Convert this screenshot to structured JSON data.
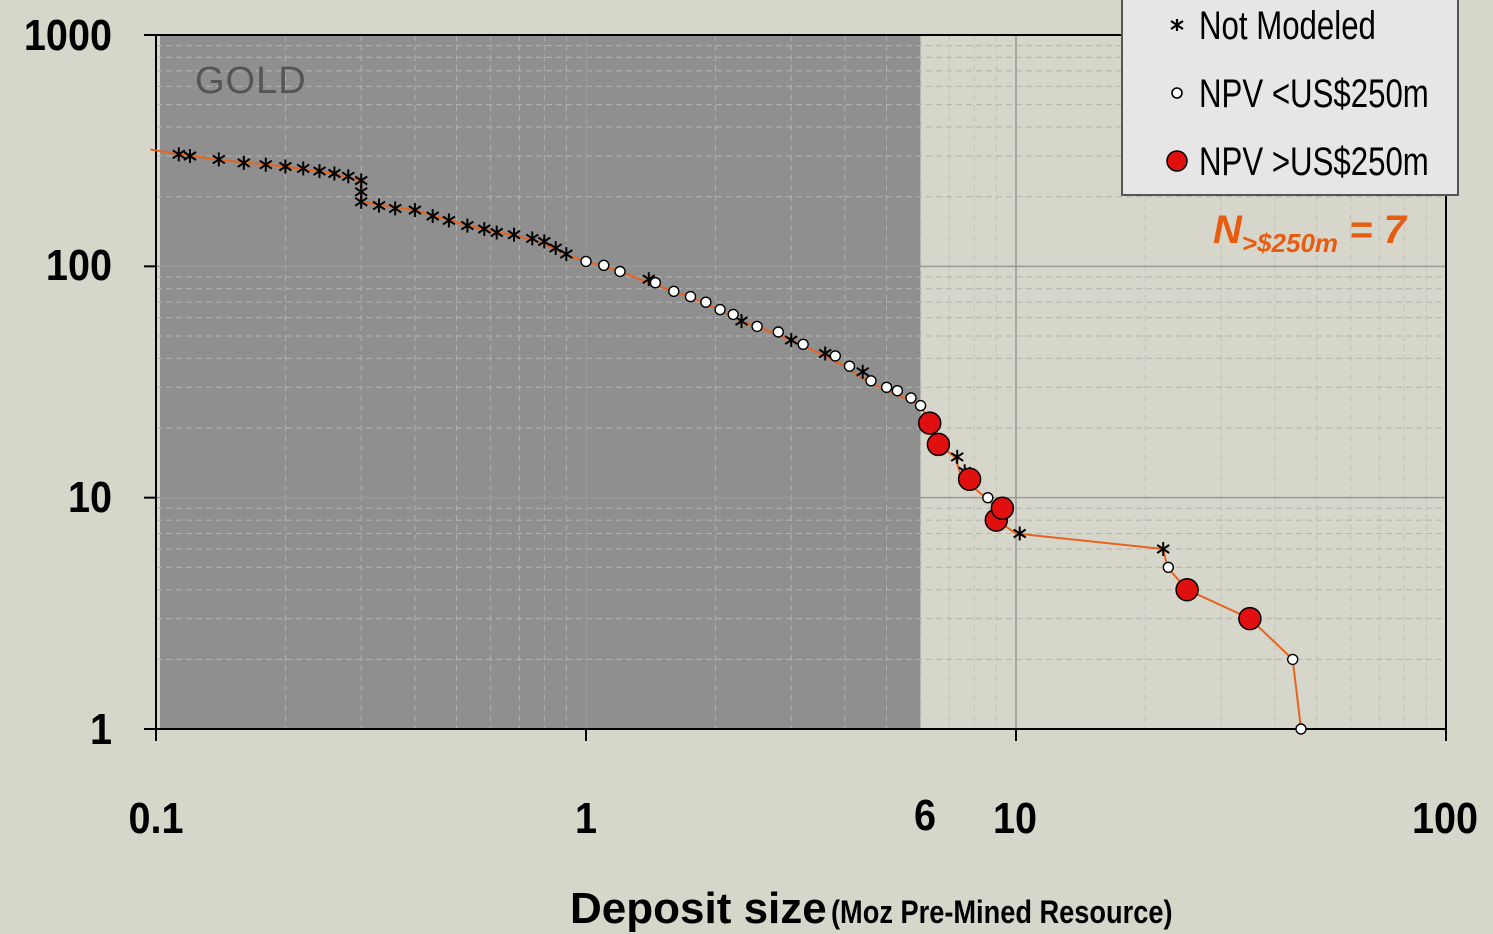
{
  "chart_data": {
    "type": "scatter",
    "xscale": "log",
    "yscale": "log",
    "xlim": [
      0.1,
      100
    ],
    "ylim": [
      1,
      1000
    ],
    "xlabel": "Deposit size",
    "xlabel_unit": "(Moz Pre-Mined Resource)",
    "ylabel": "",
    "grid": true,
    "x_ticks": [
      "0.1",
      "1",
      "6",
      "10",
      "100"
    ],
    "y_ticks": [
      "1000",
      "100",
      "10",
      "1"
    ],
    "region_label": "GOLD",
    "shaded_region": {
      "x_from": 0.1,
      "x_to": 6
    },
    "legend": {
      "position": "top-right",
      "entries": [
        "Not Modeled",
        "NPV <US$250m",
        "NPV >US$250m"
      ]
    },
    "annotation": {
      "main": "N",
      "sub": ">$250m",
      "tail": " = 7"
    },
    "curve": [
      [
        0.097,
        320
      ],
      [
        0.113,
        305
      ],
      [
        0.15,
        285
      ],
      [
        0.2,
        270
      ],
      [
        0.25,
        255
      ],
      [
        0.3,
        235
      ],
      [
        0.3,
        190
      ],
      [
        0.4,
        175
      ],
      [
        0.5,
        155
      ],
      [
        0.6,
        142
      ],
      [
        0.7,
        135
      ],
      [
        0.8,
        125
      ],
      [
        0.9,
        112
      ],
      [
        1.0,
        105
      ],
      [
        1.2,
        95
      ],
      [
        1.4,
        85
      ],
      [
        1.6,
        78
      ],
      [
        1.8,
        72
      ],
      [
        2.0,
        66
      ],
      [
        2.3,
        58
      ],
      [
        2.5,
        55
      ],
      [
        3.0,
        48
      ],
      [
        3.5,
        42
      ],
      [
        4.0,
        37
      ],
      [
        4.5,
        32
      ],
      [
        5.0,
        29
      ],
      [
        5.5,
        27
      ],
      [
        6.0,
        25
      ],
      [
        6.3,
        21
      ],
      [
        6.6,
        17
      ],
      [
        7.2,
        15
      ],
      [
        7.5,
        12
      ],
      [
        8.0,
        11
      ],
      [
        8.5,
        10
      ],
      [
        9.0,
        9
      ],
      [
        9.0,
        8
      ],
      [
        10.0,
        7
      ],
      [
        22.0,
        6
      ],
      [
        22.5,
        5
      ],
      [
        25.0,
        4
      ],
      [
        35.0,
        3
      ],
      [
        44.0,
        2
      ],
      [
        46.0,
        1
      ]
    ],
    "series": [
      {
        "name": "Not Modeled",
        "points": [
          [
            0.113,
            305
          ],
          [
            0.12,
            300
          ],
          [
            0.14,
            290
          ],
          [
            0.16,
            280
          ],
          [
            0.18,
            275
          ],
          [
            0.2,
            270
          ],
          [
            0.22,
            265
          ],
          [
            0.24,
            258
          ],
          [
            0.26,
            252
          ],
          [
            0.28,
            245
          ],
          [
            0.3,
            235
          ],
          [
            0.3,
            210
          ],
          [
            0.3,
            190
          ],
          [
            0.33,
            183
          ],
          [
            0.36,
            178
          ],
          [
            0.4,
            175
          ],
          [
            0.44,
            165
          ],
          [
            0.48,
            158
          ],
          [
            0.53,
            150
          ],
          [
            0.58,
            145
          ],
          [
            0.62,
            140
          ],
          [
            0.68,
            137
          ],
          [
            0.75,
            132
          ],
          [
            0.8,
            128
          ],
          [
            0.85,
            120
          ],
          [
            0.9,
            113
          ],
          [
            1.4,
            88
          ],
          [
            2.3,
            58
          ],
          [
            3.0,
            48
          ],
          [
            3.6,
            42
          ],
          [
            4.4,
            35
          ],
          [
            7.3,
            15
          ],
          [
            7.6,
            13
          ],
          [
            10.2,
            7
          ],
          [
            22.0,
            6
          ]
        ]
      },
      {
        "name": "NPV <US$250m",
        "points": [
          [
            1.0,
            105
          ],
          [
            1.1,
            101
          ],
          [
            1.2,
            95
          ],
          [
            1.45,
            85
          ],
          [
            1.6,
            78
          ],
          [
            1.75,
            74
          ],
          [
            1.9,
            70
          ],
          [
            2.05,
            65
          ],
          [
            2.2,
            62
          ],
          [
            2.5,
            55
          ],
          [
            2.8,
            52
          ],
          [
            3.2,
            46
          ],
          [
            3.8,
            41
          ],
          [
            4.1,
            37
          ],
          [
            4.6,
            32
          ],
          [
            5.0,
            30
          ],
          [
            5.3,
            29
          ],
          [
            5.7,
            27
          ],
          [
            6.0,
            25
          ],
          [
            8.6,
            10
          ],
          [
            22.6,
            5
          ],
          [
            44.0,
            2
          ],
          [
            46.0,
            1
          ]
        ]
      },
      {
        "name": "NPV >US$250m",
        "points": [
          [
            6.3,
            21
          ],
          [
            6.6,
            17
          ],
          [
            7.8,
            12
          ],
          [
            9.0,
            8
          ],
          [
            9.3,
            9
          ],
          [
            25.0,
            4
          ],
          [
            35.0,
            3
          ]
        ]
      }
    ]
  },
  "colors": {
    "background": "#d6d6cb",
    "shade": "#8f8f8f",
    "line": "#e8641e",
    "grid_major": "#9a9a94",
    "red_marker": "#e01010",
    "annotation": "#e85c12"
  }
}
